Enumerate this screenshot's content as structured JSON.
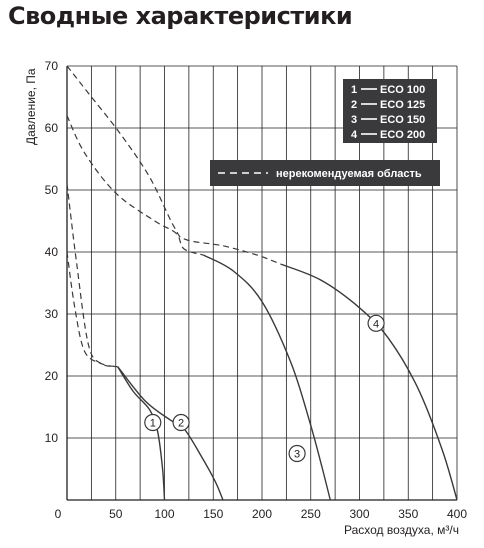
{
  "page": {
    "title": "Сводные характеристики"
  },
  "chart_data": {
    "type": "line",
    "title": "Сводные характеристики",
    "xlabel": "Расход воздуха, м³/ч",
    "ylabel": "Давление, Па",
    "xlim": [
      0,
      400
    ],
    "ylim": [
      0,
      70
    ],
    "x_ticks": [
      "0",
      "50",
      "100",
      "150",
      "200",
      "250",
      "300",
      "350",
      "400"
    ],
    "y_ticks": [
      "10",
      "20",
      "30",
      "40",
      "50",
      "60",
      "70"
    ],
    "grid": true,
    "legend_position": "top-right",
    "line_color": "#3a3a3c",
    "legend_bg": "#3a3a3c",
    "legend_text_color": "#ffffff",
    "series": [
      {
        "name": "ECO 100",
        "marker": "1",
        "marker_at": [
          88,
          12.5
        ],
        "dashed": [
          [
            0,
            51
          ],
          [
            10,
            38
          ],
          [
            22,
            25
          ],
          [
            35,
            22
          ],
          [
            52,
            21.5
          ]
        ],
        "solid": [
          [
            52,
            21.5
          ],
          [
            68,
            17.5
          ],
          [
            85,
            14.5
          ],
          [
            93,
            11
          ],
          [
            98,
            5
          ],
          [
            100,
            0
          ]
        ]
      },
      {
        "name": "ECO 125",
        "marker": "2",
        "marker_at": [
          117,
          12.5
        ],
        "dashed": [
          [
            0,
            40
          ],
          [
            8,
            31
          ],
          [
            18,
            24
          ],
          [
            35,
            22
          ],
          [
            52,
            21.5
          ]
        ],
        "solid": [
          [
            52,
            21.5
          ],
          [
            80,
            16
          ],
          [
            105,
            13
          ],
          [
            120,
            11.5
          ],
          [
            138,
            7
          ],
          [
            152,
            3
          ],
          [
            160,
            0
          ]
        ]
      },
      {
        "name": "ECO 150",
        "marker": "3",
        "marker_at": [
          236,
          7.5
        ],
        "dashed": [
          [
            0,
            62
          ],
          [
            18,
            56
          ],
          [
            50,
            49.5
          ],
          [
            90,
            45
          ],
          [
            112,
            43
          ],
          [
            120,
            40.5
          ],
          [
            140,
            39.5
          ]
        ],
        "solid": [
          [
            140,
            39.5
          ],
          [
            170,
            37
          ],
          [
            200,
            32
          ],
          [
            230,
            22
          ],
          [
            250,
            12
          ],
          [
            262,
            5
          ],
          [
            270,
            0
          ]
        ]
      },
      {
        "name": "ECO 200",
        "marker": "4",
        "marker_at": [
          317,
          28.5
        ],
        "dashed": [
          [
            0,
            70
          ],
          [
            20,
            66
          ],
          [
            55,
            59
          ],
          [
            85,
            52
          ],
          [
            110,
            44
          ],
          [
            122,
            42
          ],
          [
            160,
            41
          ],
          [
            195,
            39.5
          ],
          [
            220,
            38
          ]
        ],
        "solid": [
          [
            220,
            38
          ],
          [
            260,
            35.5
          ],
          [
            300,
            31
          ],
          [
            330,
            26
          ],
          [
            360,
            18
          ],
          [
            385,
            8
          ],
          [
            400,
            0
          ]
        ]
      }
    ],
    "annotations": [
      {
        "text": "нерекомендуемая область",
        "style": "dashed-line-key"
      }
    ]
  }
}
